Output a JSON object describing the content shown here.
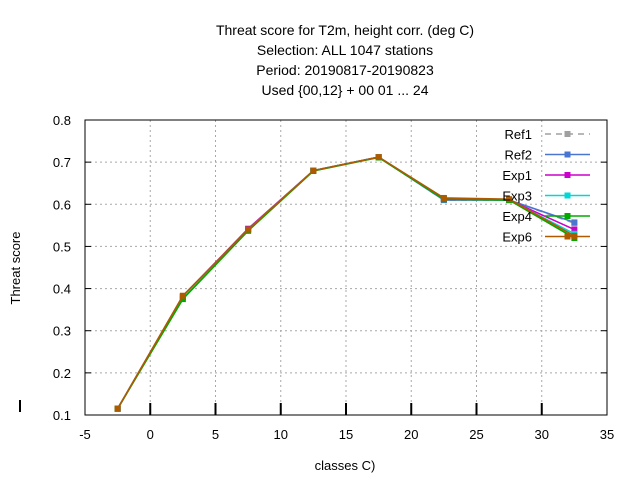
{
  "chart_data": {
    "type": "line",
    "title_lines": [
      "Threat score  for T2m, height corr. (deg C)",
      "Selection: ALL    1047 stations",
      "Period: 20190817-20190823",
      "Used {00,12} + 00 01 ... 24"
    ],
    "xlabel": "classes C)",
    "ylabel": "Threat score",
    "xlim": [
      -5,
      35
    ],
    "ylim": [
      0.1,
      0.8
    ],
    "xticks": [
      -5,
      0,
      5,
      10,
      15,
      20,
      25,
      30,
      35
    ],
    "yticks": [
      0.1,
      0.2,
      0.3,
      0.4,
      0.5,
      0.6,
      0.7,
      0.8
    ],
    "grid": true,
    "legend_position": "top-right",
    "x": [
      -2.5,
      2.5,
      7.5,
      12.5,
      17.5,
      22.5,
      27.5,
      32.5
    ],
    "series": [
      {
        "name": "Ref1",
        "color": "#a0a0a0",
        "dashed": true,
        "values": [
          0.115,
          0.38,
          0.54,
          0.68,
          0.712,
          0.61,
          0.61,
          0.555
        ]
      },
      {
        "name": "Ref2",
        "color": "#4a76d0",
        "dashed": false,
        "values": [
          0.115,
          0.38,
          0.54,
          0.68,
          0.712,
          0.61,
          0.61,
          0.557
        ]
      },
      {
        "name": "Exp1",
        "color": "#cc00cc",
        "dashed": false,
        "values": [
          0.115,
          0.382,
          0.542,
          0.68,
          0.712,
          0.613,
          0.61,
          0.54
        ]
      },
      {
        "name": "Exp3",
        "color": "#00d8d8",
        "dashed": false,
        "values": [
          0.115,
          0.38,
          0.54,
          0.68,
          0.712,
          0.613,
          0.61,
          0.53
        ]
      },
      {
        "name": "Exp4",
        "color": "#00aa00",
        "dashed": false,
        "values": [
          0.115,
          0.375,
          0.537,
          0.679,
          0.711,
          0.612,
          0.61,
          0.52
        ]
      },
      {
        "name": "Exp6",
        "color": "#b05a00",
        "dashed": false,
        "values": [
          0.115,
          0.383,
          0.54,
          0.68,
          0.712,
          0.615,
          0.612,
          0.525
        ]
      }
    ]
  }
}
